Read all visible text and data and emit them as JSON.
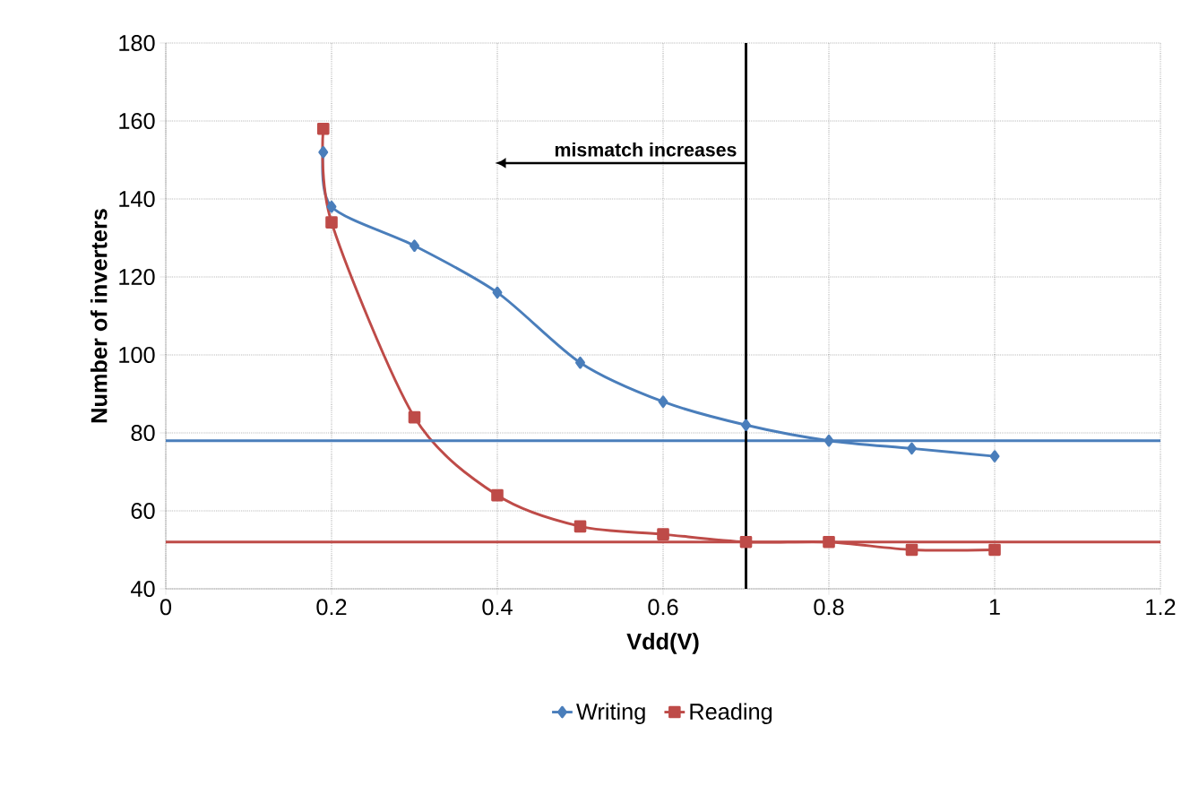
{
  "chart_data": {
    "type": "line",
    "xlabel": "Vdd(V)",
    "ylabel": "Number of inverters",
    "xlim": [
      0,
      1.2
    ],
    "xticks": [
      0,
      0.2,
      0.4,
      0.6,
      0.8,
      1,
      1.2
    ],
    "ylim": [
      40,
      180
    ],
    "yticks": [
      40,
      60,
      80,
      100,
      120,
      140,
      160,
      180
    ],
    "grid": true,
    "legend": "bottom",
    "series": [
      {
        "name": "Writing",
        "color": "#4a7ebb",
        "marker": "diamond",
        "x": [
          0.19,
          0.2,
          0.3,
          0.4,
          0.5,
          0.6,
          0.7,
          0.8,
          0.9,
          1.0
        ],
        "values": [
          152,
          138,
          128,
          116,
          98,
          88,
          82,
          78,
          76,
          74
        ]
      },
      {
        "name": "Reading",
        "color": "#be4b48",
        "marker": "square",
        "x": [
          0.19,
          0.2,
          0.3,
          0.4,
          0.5,
          0.6,
          0.7,
          0.8,
          0.9,
          1.0
        ],
        "values": [
          158,
          134,
          84,
          64,
          56,
          54,
          52,
          52,
          50,
          50
        ]
      }
    ],
    "ref_lines": [
      {
        "axis": "y",
        "value": 78,
        "color": "#4a7ebb"
      },
      {
        "axis": "y",
        "value": 52,
        "color": "#be4b48"
      },
      {
        "axis": "x",
        "value": 0.7,
        "color": "#000000"
      }
    ],
    "annotations": [
      "mismatch increases"
    ]
  }
}
